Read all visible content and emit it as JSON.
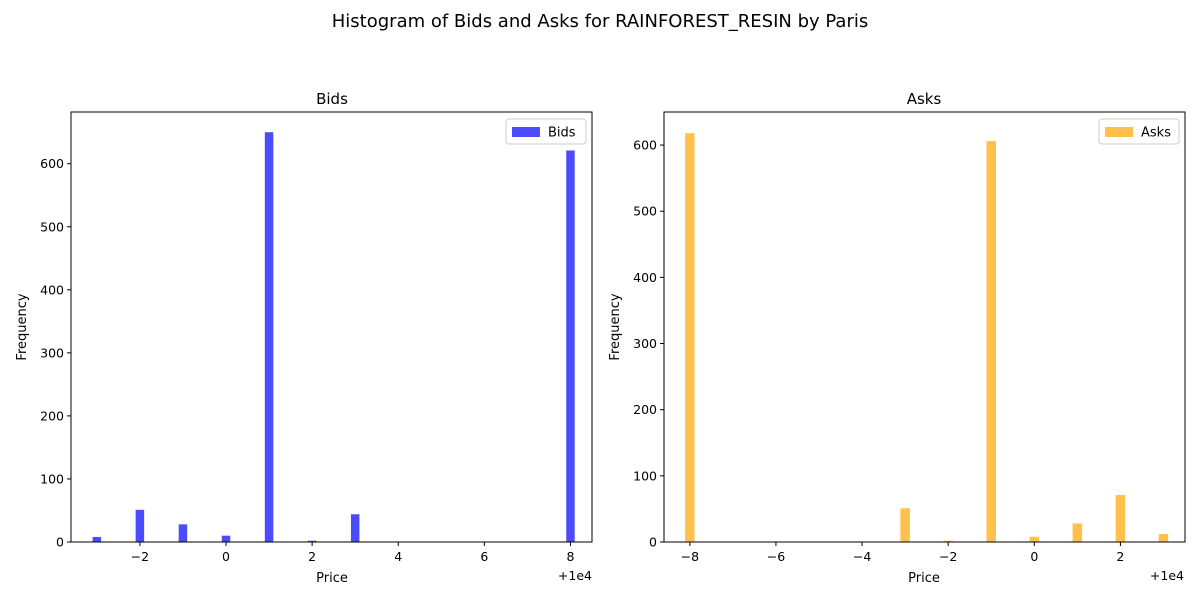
{
  "figure": {
    "suptitle": "Histogram of Bids and Asks for RAINFOREST_RESIN by Paris"
  },
  "chart_data": [
    {
      "type": "bar",
      "title": "Bids",
      "xlabel": "Price",
      "ylabel": "Frequency",
      "offset_label": "+1e4",
      "legend": "Bids",
      "legend_position": "top-right",
      "color": "#0000ff",
      "opacity": 0.7,
      "x": [
        9997,
        9998,
        9999,
        10000,
        10001,
        10002,
        10003,
        10008
      ],
      "values": [
        8,
        51,
        28,
        10,
        650,
        2,
        44,
        621
      ],
      "xlim": [
        9996.4,
        10008.5
      ],
      "ylim": [
        0,
        682
      ],
      "xticks": [
        9998,
        10000,
        10002,
        10004,
        10006,
        10008
      ],
      "xtick_labels": [
        "−2",
        "0",
        "2",
        "4",
        "6",
        "8"
      ],
      "yticks": [
        0,
        100,
        200,
        300,
        400,
        500,
        600
      ],
      "ytick_labels": [
        "0",
        "100",
        "200",
        "300",
        "400",
        "500",
        "600"
      ]
    },
    {
      "type": "bar",
      "title": "Asks",
      "xlabel": "Price",
      "ylabel": "Frequency",
      "offset_label": "+1e4",
      "legend": "Asks",
      "legend_position": "top-right",
      "color": "#ffa500",
      "opacity": 0.7,
      "x": [
        9992,
        9997,
        9998,
        9999,
        10000,
        10001,
        10002,
        10003
      ],
      "values": [
        618,
        51,
        2,
        606,
        8,
        28,
        71,
        12
      ],
      "xlim": [
        9991.4,
        10003.5
      ],
      "ylim": [
        0,
        650
      ],
      "xticks": [
        9992,
        9994,
        9996,
        9998,
        10000,
        10002
      ],
      "xtick_labels": [
        "−8",
        "−6",
        "−4",
        "−2",
        "0",
        "2"
      ],
      "yticks": [
        0,
        100,
        200,
        300,
        400,
        500,
        600
      ],
      "ytick_labels": [
        "0",
        "100",
        "200",
        "300",
        "400",
        "500",
        "600"
      ]
    }
  ]
}
